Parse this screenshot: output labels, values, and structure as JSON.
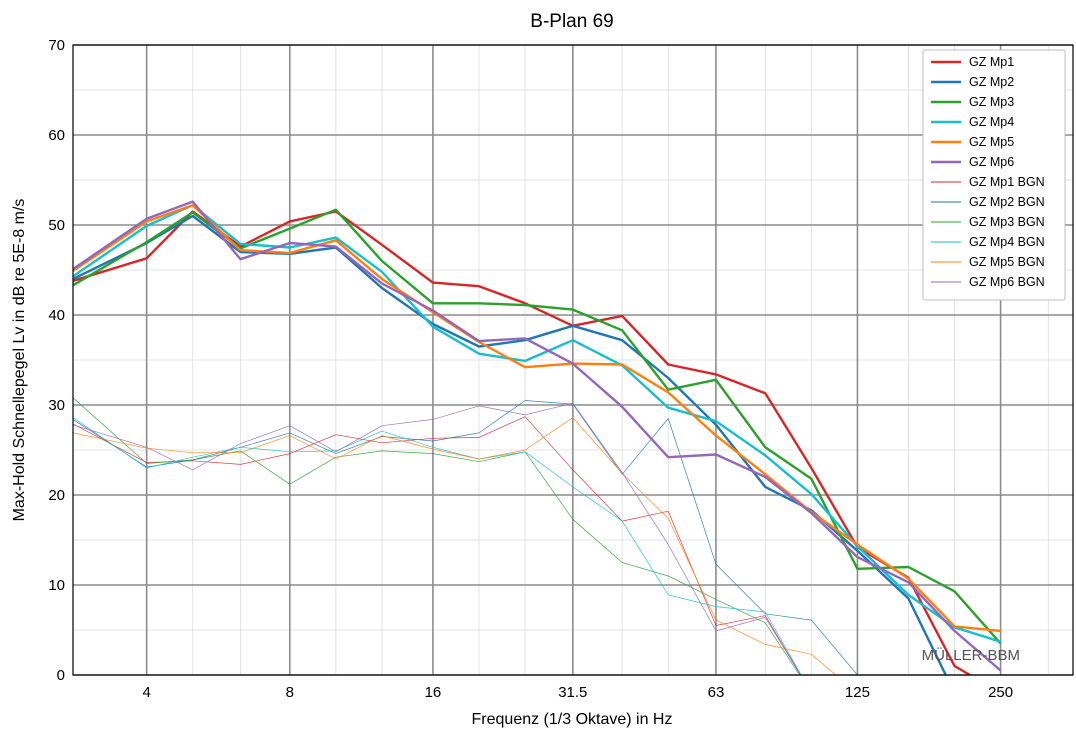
{
  "chart_data": {
    "type": "line",
    "title": "B-Plan 69",
    "xlabel": "Frequenz (1/3 Oktave) in Hz",
    "ylabel": "Max-Hold Schnellepegel Lv in dB re 5E-8 m/s",
    "x_scale": "log",
    "xlim": [
      2.8,
      355
    ],
    "ylim": [
      0,
      70
    ],
    "x_ticks": [
      4,
      8,
      16,
      31.5,
      63,
      125,
      250
    ],
    "x_tick_labels": [
      "4",
      "8",
      "16",
      "31.5",
      "63",
      "125",
      "250"
    ],
    "y_ticks": [
      0,
      10,
      20,
      30,
      40,
      50,
      60,
      70
    ],
    "y_tick_labels": [
      "0",
      "10",
      "20",
      "30",
      "40",
      "50",
      "60",
      "70"
    ],
    "grid": true,
    "legend_position": "top-right",
    "watermark": "MÜLLER-BBM",
    "x": [
      2.8,
      4,
      5,
      6.3,
      8,
      10,
      12.5,
      16,
      20,
      25,
      31.5,
      40,
      50,
      63,
      80,
      100,
      125,
      160,
      200,
      250
    ],
    "series": [
      {
        "name": "GZ Mp1",
        "color": "#d62728",
        "width": 2.4,
        "values": [
          43.8,
          46.3,
          51.5,
          47.6,
          50.4,
          51.5,
          47.8,
          43.6,
          43.2,
          41.3,
          38.8,
          39.9,
          34.5,
          33.4,
          31.3,
          23.0,
          14.2,
          10.8,
          1.0,
          -2
        ]
      },
      {
        "name": "GZ Mp2",
        "color": "#1f77b4",
        "width": 2.4,
        "values": [
          44.0,
          48.0,
          51.0,
          47.0,
          46.8,
          47.5,
          43.0,
          39.0,
          36.5,
          37.2,
          38.8,
          37.2,
          33.0,
          27.8,
          20.9,
          18.3,
          13.8,
          8.5,
          -2,
          null
        ]
      },
      {
        "name": "GZ Mp3",
        "color": "#2ca02c",
        "width": 2.4,
        "values": [
          43.3,
          48.1,
          51.4,
          47.4,
          49.6,
          51.7,
          46.0,
          41.3,
          41.3,
          41.1,
          40.6,
          38.3,
          31.7,
          32.8,
          25.3,
          21.8,
          11.8,
          12.0,
          9.3,
          3.5
        ]
      },
      {
        "name": "GZ Mp4",
        "color": "#17becf",
        "width": 2.4,
        "values": [
          44.3,
          49.9,
          52.2,
          47.9,
          47.5,
          48.6,
          44.8,
          38.7,
          35.7,
          34.9,
          37.2,
          34.4,
          29.7,
          28.2,
          24.4,
          20.1,
          14.3,
          8.9,
          5.3,
          3.7
        ]
      },
      {
        "name": "GZ Mp5",
        "color": "#ff7f0e",
        "width": 2.4,
        "values": [
          44.9,
          50.4,
          52.2,
          47.2,
          46.9,
          48.3,
          44.0,
          40.3,
          37.0,
          34.2,
          34.6,
          34.5,
          31.4,
          26.6,
          22.3,
          18.1,
          14.5,
          10.7,
          5.4,
          4.9
        ]
      },
      {
        "name": "GZ Mp6",
        "color": "#9467bd",
        "width": 2.4,
        "values": [
          45.1,
          50.7,
          52.6,
          46.2,
          48.0,
          47.6,
          43.5,
          40.5,
          37.1,
          37.4,
          34.6,
          29.8,
          24.2,
          24.5,
          22.0,
          18.0,
          13.1,
          10.3,
          4.9,
          0.5
        ]
      },
      {
        "name": "GZ Mp1 BGN",
        "color": "#d62728",
        "width": 0.7,
        "values": [
          27.9,
          23.6,
          23.8,
          23.4,
          24.6,
          26.7,
          25.8,
          26.3,
          26.4,
          28.7,
          22.8,
          17.1,
          18.2,
          5.5,
          6.6,
          -2,
          null,
          null,
          null,
          null
        ]
      },
      {
        "name": "GZ Mp2 BGN",
        "color": "#1f77b4",
        "width": 0.7,
        "values": [
          28.4,
          23.1,
          23.9,
          25.3,
          26.9,
          24.6,
          26.5,
          26.0,
          26.9,
          30.5,
          30.1,
          22.3,
          28.5,
          12.3,
          6.8,
          6.1,
          0,
          null,
          null,
          null
        ]
      },
      {
        "name": "GZ Mp3 BGN",
        "color": "#2ca02c",
        "width": 0.7,
        "values": [
          30.8,
          23.5,
          23.9,
          24.9,
          21.2,
          24.2,
          24.9,
          24.6,
          23.7,
          24.8,
          17.3,
          12.5,
          11.0,
          8.4,
          5.8,
          -2,
          null,
          null,
          null,
          null
        ]
      },
      {
        "name": "GZ Mp4 BGN",
        "color": "#17becf",
        "width": 0.7,
        "values": [
          28.6,
          23.0,
          24.2,
          25.3,
          24.8,
          24.9,
          27.1,
          25.3,
          24.0,
          24.8,
          20.9,
          17.1,
          8.9,
          7.6,
          7.0,
          -2,
          null,
          null,
          null,
          null
        ]
      },
      {
        "name": "GZ Mp5 BGN",
        "color": "#ff7f0e",
        "width": 0.7,
        "values": [
          26.9,
          25.2,
          24.7,
          24.7,
          26.6,
          24.0,
          26.6,
          25.1,
          24.0,
          25.0,
          28.6,
          22.4,
          17.4,
          6.1,
          3.4,
          2.3,
          -2,
          null,
          null,
          null
        ]
      },
      {
        "name": "GZ Mp6 BGN",
        "color": "#9467bd",
        "width": 0.7,
        "values": [
          27.8,
          25.3,
          22.8,
          25.7,
          27.7,
          24.8,
          27.7,
          28.4,
          29.9,
          28.9,
          30.2,
          22.5,
          14.5,
          4.9,
          6.4,
          -2,
          null,
          null,
          null,
          null
        ]
      }
    ]
  }
}
